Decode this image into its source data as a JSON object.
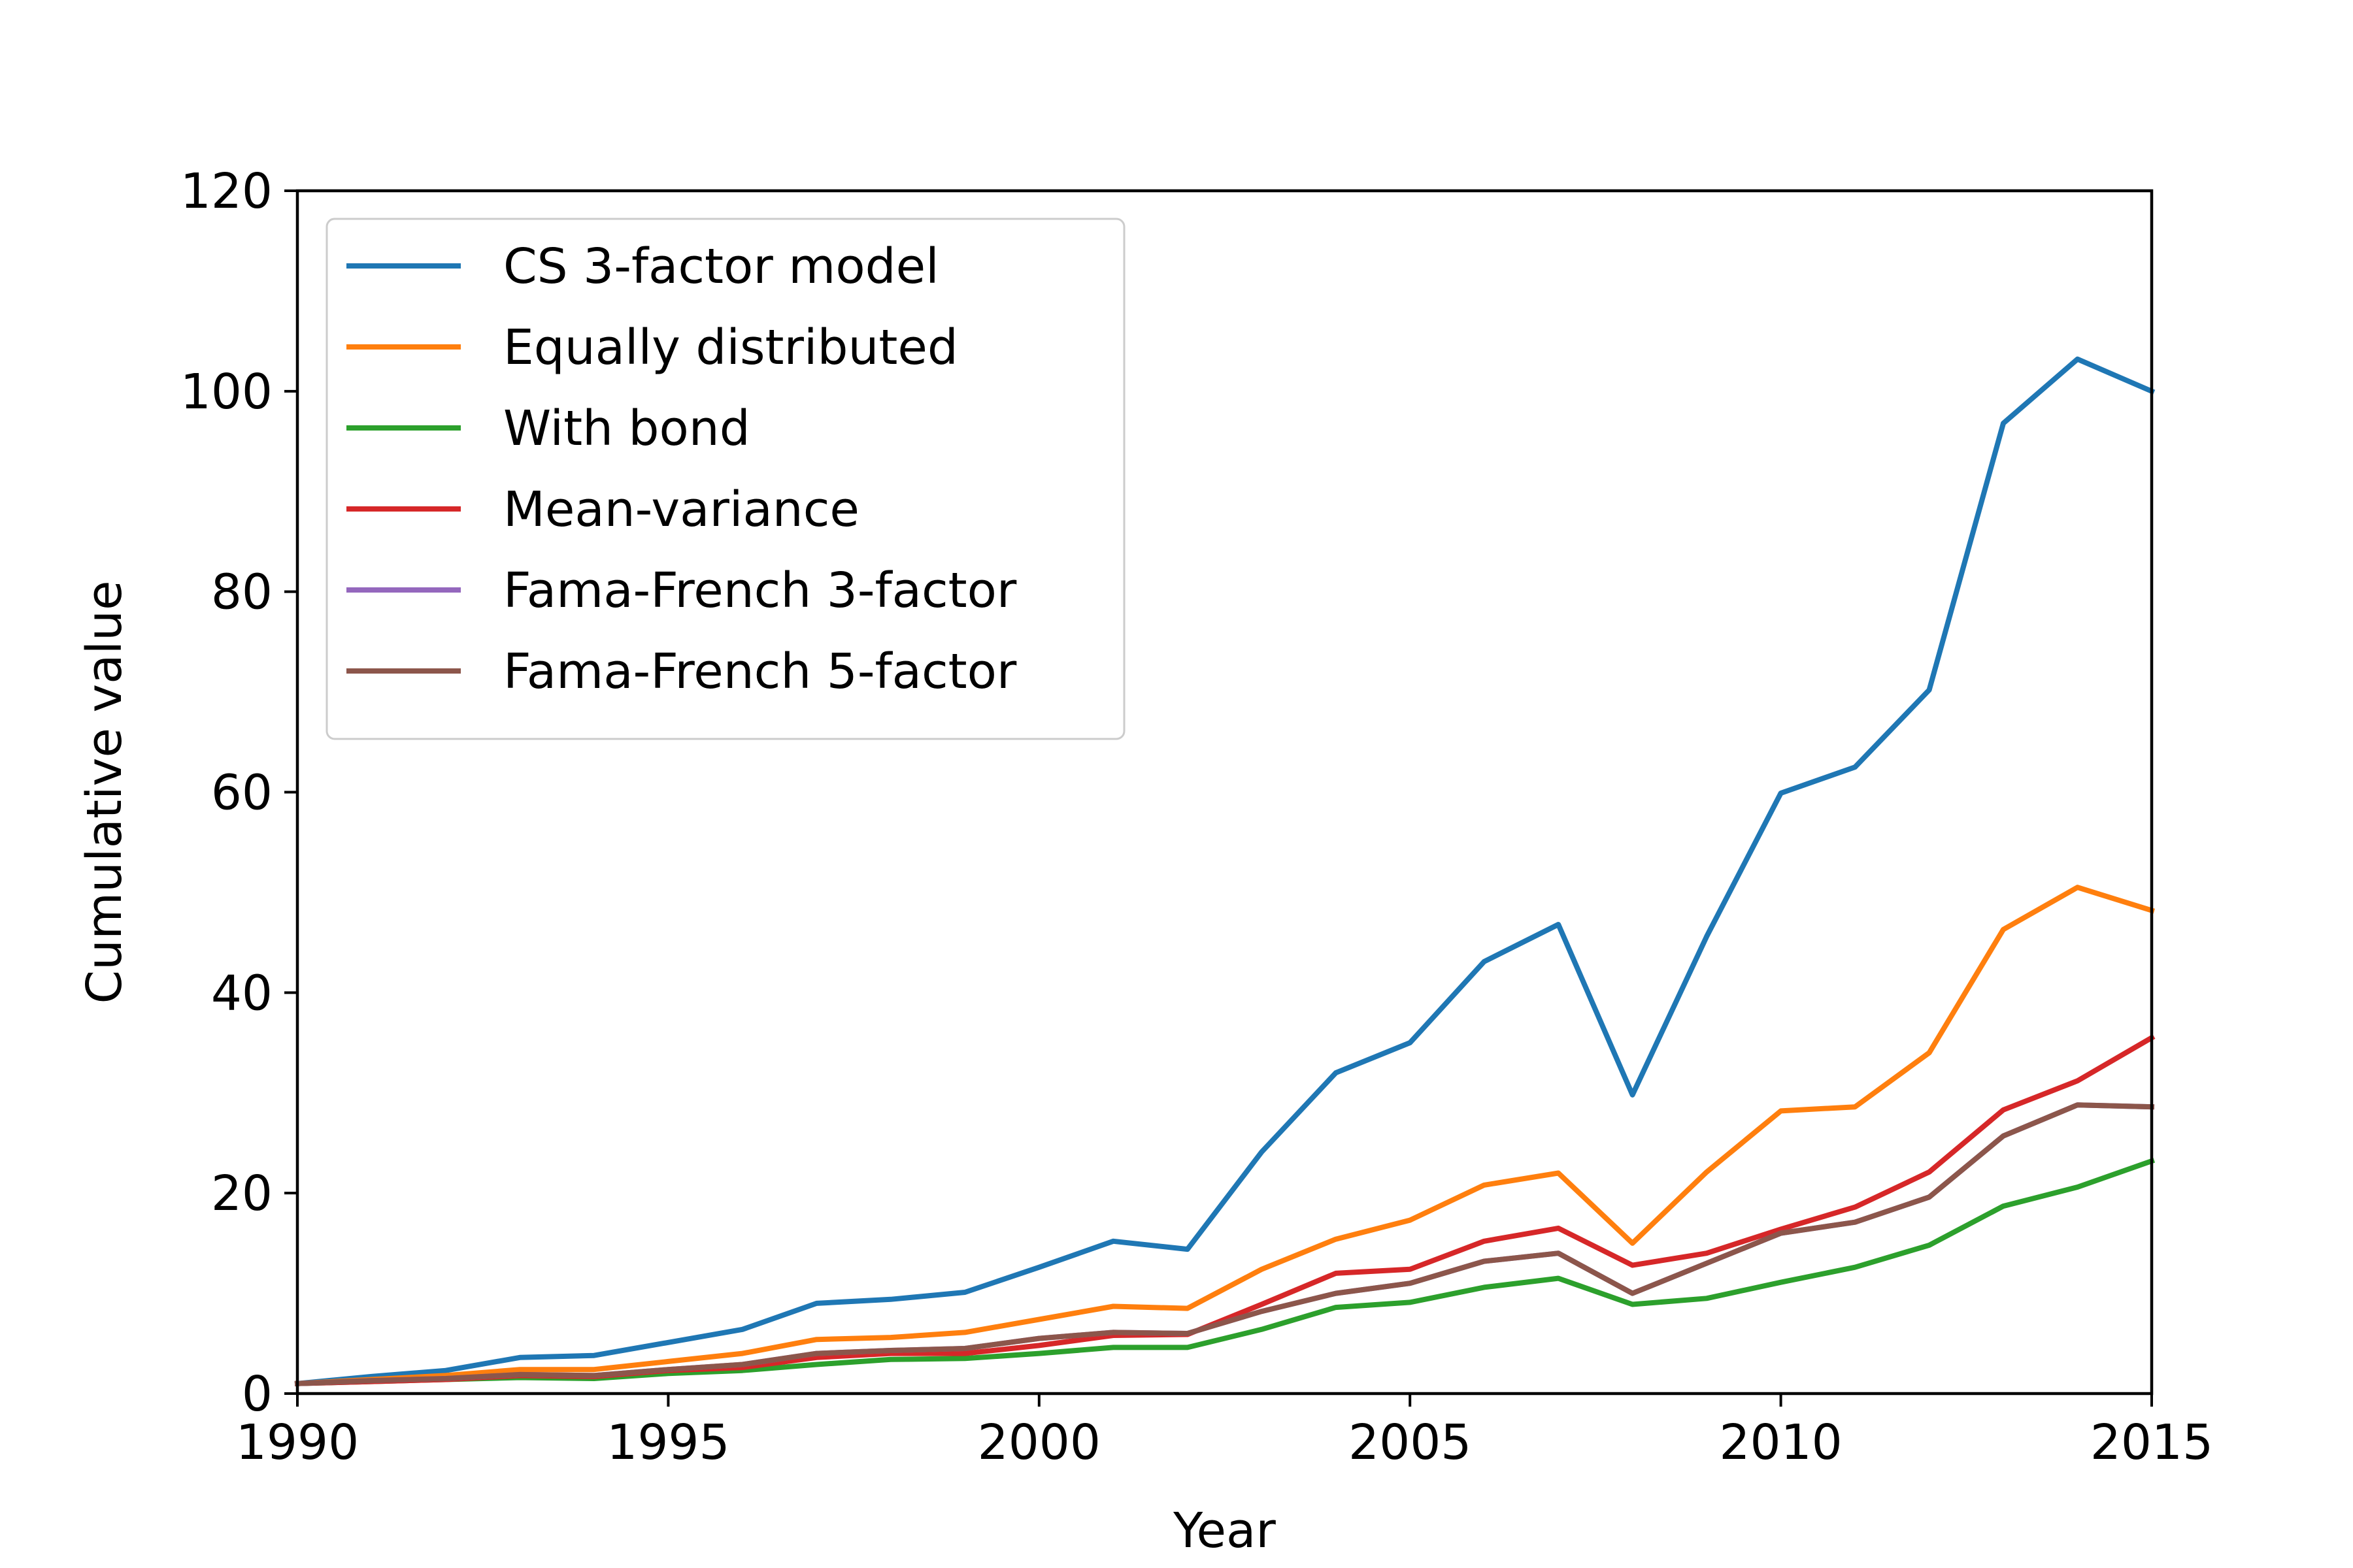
{
  "chart_data": {
    "type": "line",
    "title": "",
    "xlabel": "Year",
    "ylabel": "Cumulative value",
    "xlim": [
      1990,
      2015
    ],
    "ylim": [
      0,
      120
    ],
    "xticks": [
      1990,
      1995,
      2000,
      2005,
      2010,
      2015
    ],
    "yticks": [
      0,
      20,
      40,
      60,
      80,
      100,
      120
    ],
    "grid": false,
    "legend": "upper-left",
    "x": [
      1990,
      1991,
      1992,
      1993,
      1994,
      1995,
      1996,
      1997,
      1998,
      1999,
      2000,
      2001,
      2002,
      2003,
      2004,
      2005,
      2006,
      2007,
      2008,
      2009,
      2010,
      2011,
      2012,
      2013,
      2014,
      2015
    ],
    "series": [
      {
        "name": "CS 3-factor model",
        "color": "#1f77b4",
        "values": [
          1.0,
          1.7,
          2.3,
          3.6,
          3.8,
          5.1,
          6.4,
          9.0,
          9.4,
          10.1,
          12.6,
          15.2,
          14.4,
          24.1,
          32.0,
          35.0,
          43.1,
          46.8,
          29.8,
          45.6,
          59.9,
          62.5,
          70.2,
          96.8,
          103.2,
          100.0
        ]
      },
      {
        "name": "Equally distributed",
        "color": "#ff7f0e",
        "values": [
          1.0,
          1.4,
          1.8,
          2.4,
          2.4,
          3.2,
          4.0,
          5.4,
          5.6,
          6.1,
          7.4,
          8.7,
          8.5,
          12.4,
          15.4,
          17.3,
          20.8,
          22.0,
          15.0,
          22.1,
          28.2,
          28.6,
          34.0,
          46.3,
          50.5,
          48.2
        ]
      },
      {
        "name": "With bond",
        "color": "#2ca02c",
        "values": [
          1.0,
          1.2,
          1.4,
          1.6,
          1.5,
          2.0,
          2.3,
          2.9,
          3.4,
          3.5,
          4.0,
          4.6,
          4.6,
          6.4,
          8.6,
          9.1,
          10.6,
          11.5,
          8.9,
          9.5,
          11.1,
          12.6,
          14.8,
          18.7,
          20.6,
          23.2
        ]
      },
      {
        "name": "Mean-variance",
        "color": "#d62728",
        "values": [
          1.0,
          1.2,
          1.4,
          1.8,
          1.7,
          2.3,
          2.6,
          3.6,
          4.0,
          4.0,
          4.8,
          5.8,
          5.9,
          8.9,
          12.0,
          12.4,
          15.2,
          16.5,
          12.8,
          14.0,
          16.4,
          18.6,
          22.1,
          28.3,
          31.2,
          35.5
        ]
      },
      {
        "name": "Fama-French 3-factor",
        "color": "#9467bd",
        "values": [
          1.0,
          1.3,
          1.5,
          1.9,
          1.8,
          2.4,
          2.9,
          4.0,
          4.3,
          4.5,
          5.5,
          6.1,
          6.0,
          8.2,
          10.0,
          11.0,
          13.2,
          14.0,
          10.0,
          13.0,
          16.0,
          17.1,
          19.6,
          25.7,
          28.8,
          28.6
        ]
      },
      {
        "name": "Fama-French 5-factor",
        "color": "#8c564b",
        "values": [
          1.0,
          1.3,
          1.5,
          1.9,
          1.8,
          2.4,
          2.9,
          4.0,
          4.3,
          4.5,
          5.5,
          6.1,
          6.0,
          8.2,
          10.0,
          11.0,
          13.2,
          14.0,
          10.0,
          13.0,
          16.0,
          17.1,
          19.6,
          25.7,
          28.8,
          28.6
        ]
      }
    ]
  }
}
